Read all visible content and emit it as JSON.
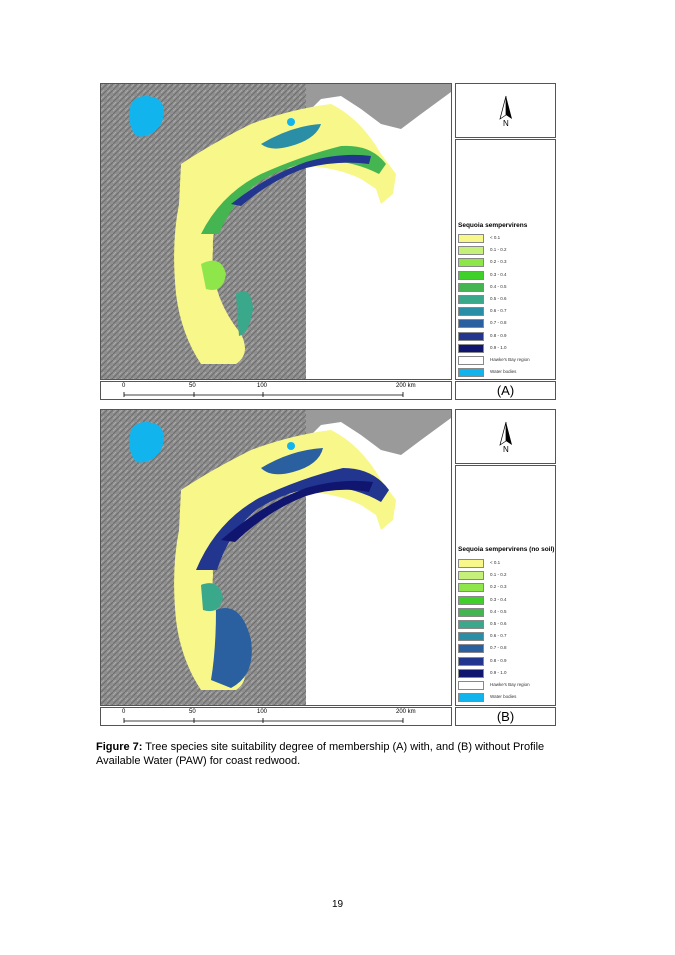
{
  "panels": [
    {
      "id": "A",
      "legend_title": "Sequoia sempervirens",
      "panel_label": "(A)"
    },
    {
      "id": "B",
      "legend_title": "Sequoia sempervirens (no soil)",
      "panel_label": "(B)"
    }
  ],
  "north_label": "N",
  "scale_labels": [
    "0",
    "50",
    "100",
    "200 km"
  ],
  "legend_items": [
    {
      "label": "< 0.1",
      "color": "#f7f78a"
    },
    {
      "label": "0.1 - 0.2",
      "color": "#c5f07a"
    },
    {
      "label": "0.2 - 0.3",
      "color": "#8ee64a"
    },
    {
      "label": "0.3 - 0.4",
      "color": "#3fd12a"
    },
    {
      "label": "0.4 - 0.5",
      "color": "#45b552"
    },
    {
      "label": "0.5 - 0.6",
      "color": "#3aa88a"
    },
    {
      "label": "0.6 - 0.7",
      "color": "#2a8ea6"
    },
    {
      "label": "0.7 - 0.8",
      "color": "#2a5fa0"
    },
    {
      "label": "0.8 - 0.9",
      "color": "#22358f"
    },
    {
      "label": "0.9 - 1.0",
      "color": "#101570"
    },
    {
      "label": "Hawke's Bay region",
      "color": "#ffffff"
    },
    {
      "label": "Water bodies",
      "color": "#12b4ee"
    }
  ],
  "caption": {
    "label": "Figure 7:",
    "text": " Tree species site suitability degree of membership (A) with, and (B) without Profile Available Water (PAW) for coast redwood."
  },
  "page_number": "19"
}
